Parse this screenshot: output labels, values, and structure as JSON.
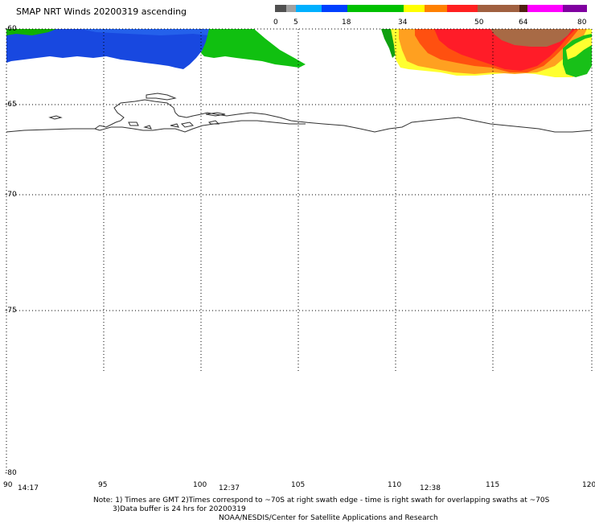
{
  "title": "SMAP NRT Winds 20200319 ascending",
  "colorbar": {
    "ticks": [
      "0",
      "5",
      "18",
      "34",
      "50",
      "64",
      "80"
    ],
    "colors": [
      "#505050",
      "#9a9a9a",
      "#00a8ff",
      "#0050ff",
      "#00c000",
      "#ffff00",
      "#ff9000",
      "#ff2020",
      "#8b4513",
      "#ff00ff",
      "#800080"
    ]
  },
  "lat_labels": [
    "-60",
    "-65",
    "-70",
    "-75",
    "-80"
  ],
  "lon_labels": [
    "90",
    "95",
    "100",
    "105",
    "110",
    "115",
    "120"
  ],
  "times": [
    "14:17",
    "12:37",
    "12:38"
  ],
  "notes": {
    "line1": "Note: 1) Times are GMT 2)Times correspond to ~70S at right swath edge - time is right swath for overlapping swaths at ~70S",
    "line2": "3)Data buffer is 24 hrs for 20200319",
    "line3": "NOAA/NESDIS/Center for Satellite Applications and Research"
  }
}
